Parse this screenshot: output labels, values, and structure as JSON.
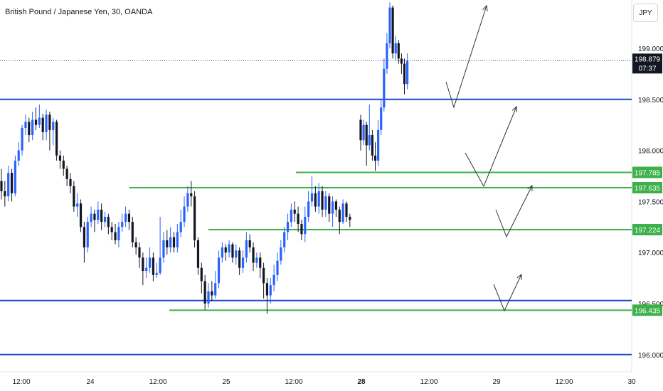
{
  "header": {
    "symbol_title": "British Pound / Japanese Yen, 30, OANDA",
    "currency": "JPY"
  },
  "colors": {
    "bull": "#2962ff",
    "bear": "#131722",
    "blue_line": "#1848cc",
    "green_line": "#3cb04a",
    "price_tag_bg": "#131722",
    "arrow": "#333333"
  },
  "chart_data": {
    "type": "candlestick",
    "title": "British Pound / Japanese Yen, 30, OANDA",
    "y_axis": {
      "min": 195.9,
      "max": 199.5,
      "tick_labels": [
        "199.000",
        "198.500",
        "198.000",
        "197.500",
        "197.000",
        "196.500",
        "196.000"
      ],
      "ticks": [
        199.0,
        198.5,
        198.0,
        197.5,
        197.0,
        196.5,
        196.0
      ]
    },
    "x_axis": {
      "tick_labels": [
        "12:00",
        "24",
        "12:00",
        "25",
        "12:00",
        "28",
        "12:00",
        "29",
        "12:00",
        "30"
      ],
      "bold": [
        "28"
      ]
    },
    "current_price": {
      "value": "198.879",
      "countdown": "07:37",
      "price": 198.879
    },
    "blue_levels": [
      198.5,
      196.53,
      196.0
    ],
    "green_levels": [
      {
        "price": 197.785,
        "label": "197.785"
      },
      {
        "price": 197.635,
        "label": "197.635"
      },
      {
        "price": 197.224,
        "label": "197.224"
      },
      {
        "price": 196.435,
        "label": "196.435"
      }
    ],
    "candles": [
      [
        197.7,
        197.6,
        197.82,
        197.52
      ],
      [
        197.6,
        197.55,
        197.7,
        197.45
      ],
      [
        197.55,
        197.78,
        197.85,
        197.5
      ],
      [
        197.78,
        197.58,
        197.82,
        197.5
      ],
      [
        197.58,
        197.9,
        197.95,
        197.55
      ],
      [
        197.9,
        198.0,
        198.08,
        197.85
      ],
      [
        198.0,
        198.22,
        198.25,
        197.95
      ],
      [
        198.22,
        198.28,
        198.35,
        198.15
      ],
      [
        198.28,
        198.15,
        198.32,
        198.08
      ],
      [
        198.15,
        198.3,
        198.38,
        198.1
      ],
      [
        198.3,
        198.25,
        198.42,
        198.2
      ],
      [
        198.25,
        198.32,
        198.45,
        198.22
      ],
      [
        198.32,
        198.18,
        198.36,
        198.1
      ],
      [
        198.18,
        198.35,
        198.4,
        198.1
      ],
      [
        198.35,
        198.2,
        198.38,
        198.0
      ],
      [
        198.2,
        198.28,
        198.32,
        198.05
      ],
      [
        198.28,
        197.95,
        198.3,
        197.9
      ],
      [
        197.95,
        197.9,
        198.0,
        197.82
      ],
      [
        197.9,
        197.82,
        197.95,
        197.75
      ],
      [
        197.82,
        197.72,
        197.85,
        197.65
      ],
      [
        197.72,
        197.65,
        197.78,
        197.58
      ],
      [
        197.65,
        197.45,
        197.7,
        197.4
      ],
      [
        197.45,
        197.48,
        197.58,
        197.35
      ],
      [
        197.48,
        197.25,
        197.52,
        197.2
      ],
      [
        197.25,
        197.05,
        197.3,
        196.9
      ],
      [
        197.05,
        197.3,
        197.35,
        197.0
      ],
      [
        197.3,
        197.38,
        197.45,
        197.25
      ],
      [
        197.38,
        197.32,
        197.42,
        197.2
      ],
      [
        197.32,
        197.42,
        197.5,
        197.28
      ],
      [
        197.42,
        197.3,
        197.48,
        197.22
      ],
      [
        197.3,
        197.35,
        197.4,
        197.25
      ],
      [
        197.35,
        197.25,
        197.38,
        197.18
      ],
      [
        197.25,
        197.2,
        197.3,
        197.12
      ],
      [
        197.2,
        197.12,
        197.28,
        197.08
      ],
      [
        197.12,
        197.25,
        197.3,
        197.05
      ],
      [
        197.25,
        197.3,
        197.38,
        197.2
      ],
      [
        197.3,
        197.38,
        197.45,
        197.25
      ],
      [
        197.38,
        197.3,
        197.42,
        197.22
      ],
      [
        197.3,
        197.1,
        197.35,
        197.05
      ],
      [
        197.1,
        197.05,
        197.15,
        196.98
      ],
      [
        197.05,
        196.95,
        197.1,
        196.85
      ],
      [
        196.95,
        196.82,
        197.0,
        196.68
      ],
      [
        196.82,
        196.85,
        196.95,
        196.75
      ],
      [
        196.85,
        196.95,
        197.05,
        196.8
      ],
      [
        196.95,
        196.78,
        197.0,
        196.72
      ],
      [
        196.78,
        196.8,
        196.9,
        196.75
      ],
      [
        196.8,
        196.95,
        197.35,
        196.78
      ],
      [
        196.95,
        197.12,
        197.2,
        196.9
      ],
      [
        197.12,
        197.05,
        197.22,
        196.98
      ],
      [
        197.05,
        197.15,
        197.25,
        197.0
      ],
      [
        197.15,
        197.05,
        197.2,
        197.0
      ],
      [
        197.05,
        197.2,
        197.28,
        197.0
      ],
      [
        197.2,
        197.3,
        197.42,
        197.15
      ],
      [
        197.3,
        197.45,
        197.55,
        197.25
      ],
      [
        197.45,
        197.58,
        197.65,
        197.4
      ],
      [
        197.58,
        197.55,
        197.7,
        197.45
      ],
      [
        197.55,
        197.12,
        197.6,
        197.05
      ],
      [
        197.12,
        196.85,
        197.15,
        196.78
      ],
      [
        196.85,
        196.72,
        196.9,
        196.6
      ],
      [
        196.72,
        196.5,
        196.78,
        196.44
      ],
      [
        196.5,
        196.62,
        196.7,
        196.46
      ],
      [
        196.62,
        196.58,
        196.72,
        196.52
      ],
      [
        196.58,
        196.7,
        196.82,
        196.55
      ],
      [
        196.7,
        196.95,
        197.02,
        196.65
      ],
      [
        196.95,
        197.05,
        197.1,
        196.9
      ],
      [
        197.05,
        197.0,
        197.08,
        196.92
      ],
      [
        197.0,
        197.08,
        197.12,
        196.95
      ],
      [
        197.08,
        196.95,
        197.1,
        196.9
      ],
      [
        196.95,
        197.02,
        197.08,
        196.88
      ],
      [
        197.02,
        196.85,
        197.05,
        196.78
      ],
      [
        196.85,
        196.95,
        197.02,
        196.8
      ],
      [
        196.95,
        197.12,
        197.2,
        196.9
      ],
      [
        197.12,
        197.05,
        197.18,
        197.0
      ],
      [
        197.05,
        196.9,
        197.1,
        196.82
      ],
      [
        196.9,
        196.95,
        197.0,
        196.85
      ],
      [
        196.95,
        196.85,
        197.0,
        196.75
      ],
      [
        196.85,
        196.7,
        196.9,
        196.55
      ],
      [
        196.7,
        196.58,
        196.75,
        196.4
      ],
      [
        196.58,
        196.68,
        196.75,
        196.5
      ],
      [
        196.68,
        196.78,
        196.88,
        196.62
      ],
      [
        196.78,
        196.92,
        197.0,
        196.72
      ],
      [
        196.92,
        197.05,
        197.12,
        196.88
      ],
      [
        197.05,
        197.2,
        197.25,
        197.0
      ],
      [
        197.2,
        197.3,
        197.38,
        197.12
      ],
      [
        197.3,
        197.42,
        197.48,
        197.25
      ],
      [
        197.42,
        197.38,
        197.5,
        197.3
      ],
      [
        197.38,
        197.28,
        197.45,
        197.2
      ],
      [
        197.28,
        197.18,
        197.32,
        197.12
      ],
      [
        197.18,
        197.35,
        197.45,
        197.1
      ],
      [
        197.35,
        197.5,
        197.6,
        197.3
      ],
      [
        197.5,
        197.58,
        197.75,
        197.45
      ],
      [
        197.58,
        197.45,
        197.65,
        197.4
      ],
      [
        197.45,
        197.6,
        197.68,
        197.38
      ],
      [
        197.6,
        197.42,
        197.65,
        197.35
      ],
      [
        197.42,
        197.55,
        197.6,
        197.35
      ],
      [
        197.55,
        197.38,
        197.58,
        197.3
      ],
      [
        197.38,
        197.5,
        197.55,
        197.25
      ],
      [
        197.5,
        197.42,
        197.52,
        197.35
      ],
      [
        197.42,
        197.3,
        197.45,
        197.18
      ],
      [
        197.3,
        197.48,
        197.52,
        197.28
      ],
      [
        197.48,
        197.35,
        197.5,
        197.3
      ],
      [
        197.35,
        197.32,
        197.38,
        197.25
      ]
    ],
    "gap_candles": [
      [
        198.3,
        198.1,
        198.35,
        198.0
      ],
      [
        198.1,
        198.25,
        198.3,
        198.05
      ],
      [
        198.25,
        198.05,
        198.28,
        197.85
      ],
      [
        198.05,
        198.15,
        198.45,
        198.0
      ],
      [
        198.15,
        197.95,
        198.2,
        197.9
      ],
      [
        197.95,
        197.9,
        198.08,
        197.8
      ],
      [
        197.9,
        198.2,
        198.3,
        197.85
      ],
      [
        198.2,
        198.42,
        198.5,
        198.15
      ],
      [
        198.42,
        198.8,
        198.9,
        198.38
      ],
      [
        198.8,
        199.05,
        199.15,
        198.75
      ],
      [
        199.05,
        199.4,
        199.45,
        199.0
      ],
      [
        199.4,
        198.95,
        199.42,
        198.9
      ],
      [
        198.95,
        199.05,
        199.12,
        198.88
      ],
      [
        199.05,
        198.9,
        199.08,
        198.85
      ],
      [
        198.9,
        198.85,
        198.95,
        198.75
      ],
      [
        198.85,
        198.65,
        198.9,
        198.55
      ],
      [
        198.65,
        198.88,
        198.95,
        198.6
      ]
    ]
  }
}
